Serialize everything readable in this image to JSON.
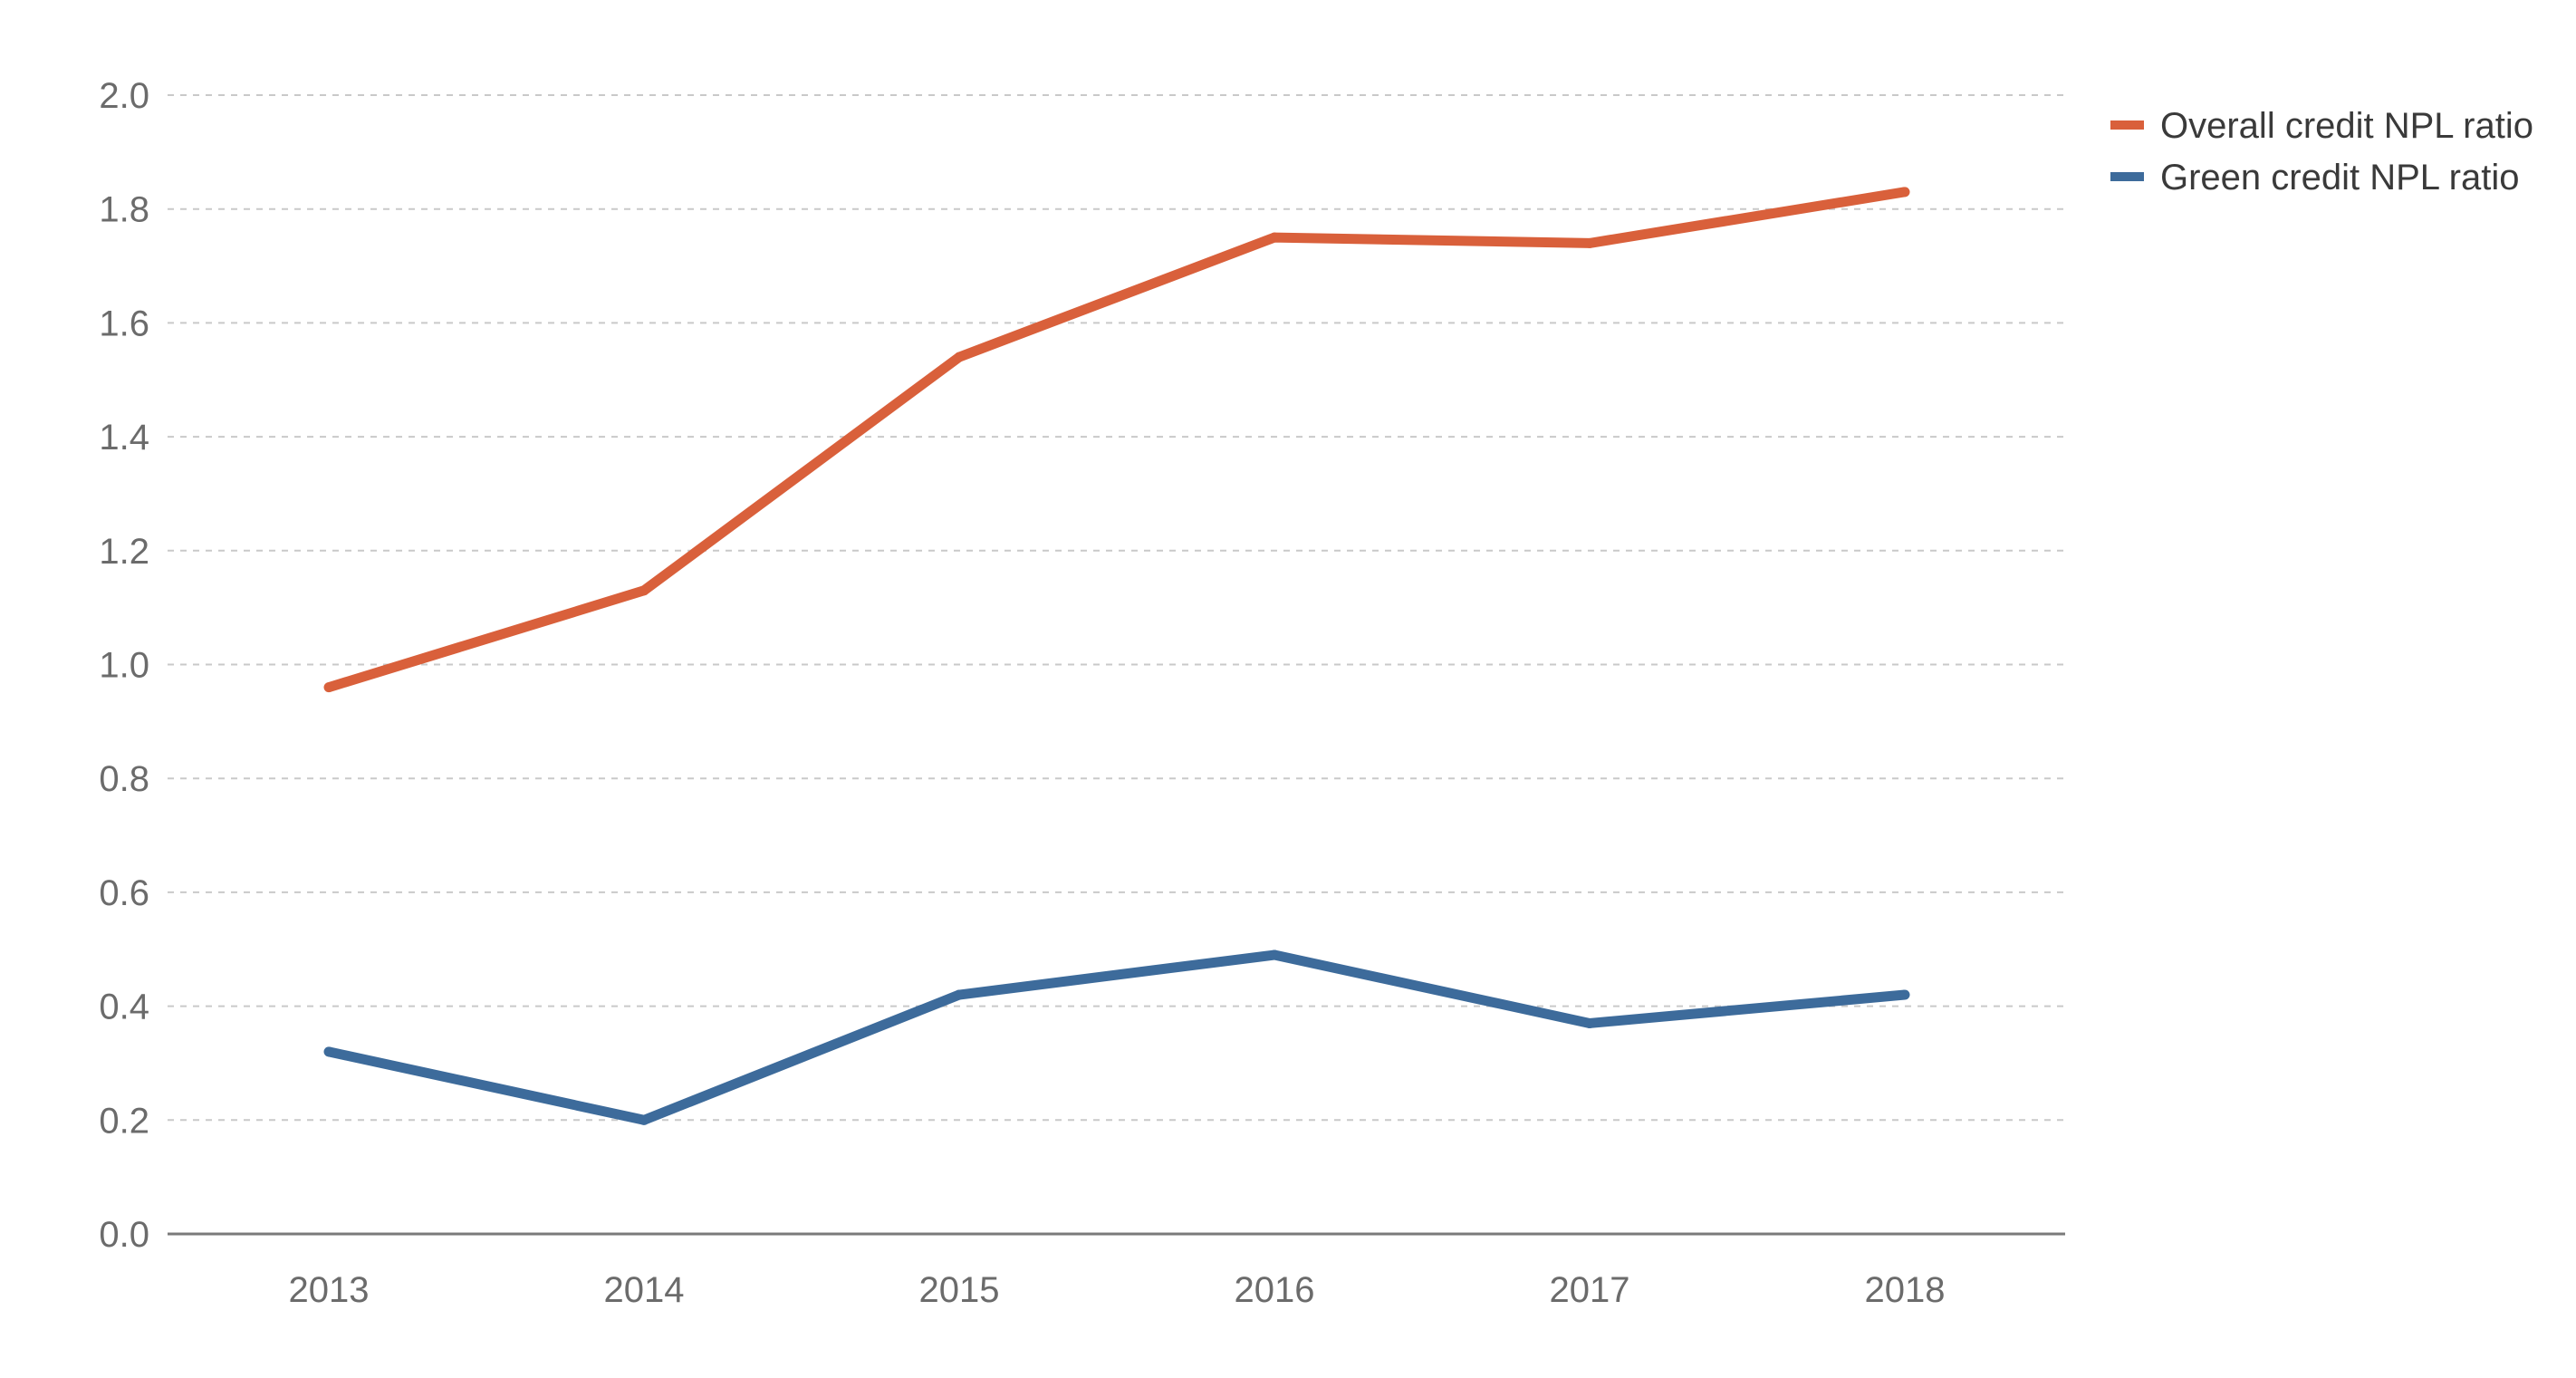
{
  "chart_data": {
    "type": "line",
    "title": "",
    "xlabel": "",
    "ylabel": "",
    "categories": [
      "2013",
      "2014",
      "2015",
      "2016",
      "2017",
      "2018"
    ],
    "y_ticks": [
      "0.0",
      "0.2",
      "0.4",
      "0.6",
      "0.8",
      "1.0",
      "1.2",
      "1.4",
      "1.6",
      "1.8",
      "2.0"
    ],
    "ylim": [
      0,
      2.0
    ],
    "grid": "horizontal-dashed",
    "legend_position": "top-right",
    "series": [
      {
        "name": "Overall credit NPL ratio",
        "color": "#d9603b",
        "values": [
          0.96,
          1.13,
          1.54,
          1.75,
          1.74,
          1.83
        ]
      },
      {
        "name": "Green credit NPL ratio",
        "color": "#3d6b9b",
        "values": [
          0.32,
          0.2,
          0.42,
          0.49,
          0.37,
          0.42
        ]
      }
    ]
  }
}
